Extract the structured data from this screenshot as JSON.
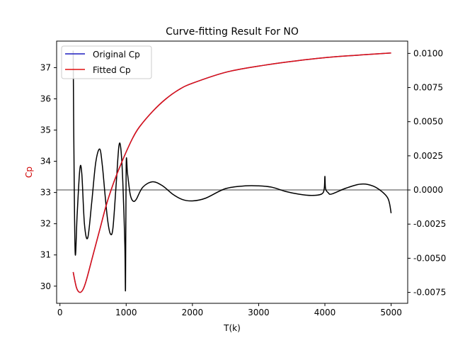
{
  "chart_data": {
    "type": "line",
    "title": "Curve-fitting Result For NO",
    "xlabel": "T(k)",
    "ylabel": "Cp",
    "xlim": [
      -50,
      5250
    ],
    "ylim": [
      29.45,
      37.85
    ],
    "y2lim": [
      -0.0083,
      0.0109
    ],
    "grid": false,
    "legend_position": "upper-left",
    "x_ticks": [
      "0",
      "1000",
      "2000",
      "3000",
      "4000",
      "5000"
    ],
    "y_ticks": [
      "30",
      "31",
      "32",
      "33",
      "34",
      "35",
      "36",
      "37"
    ],
    "y2_ticks": [
      "-0.0075",
      "-0.0050",
      "-0.0025",
      "0.0000",
      "0.0025",
      "0.0050",
      "0.0075",
      "0.0100"
    ],
    "colors": {
      "original": "#1f1fbf",
      "fitted": "#e01010",
      "residual": "#000000",
      "zero_line": "#808080",
      "ylabel": "#d00000"
    },
    "series": [
      {
        "name": "Original Cp",
        "axis": "left",
        "x": [
          200,
          250,
          300,
          350,
          400,
          500,
          600,
          700,
          800,
          900,
          1000,
          1100,
          1200,
          1400,
          1600,
          1800,
          2000,
          2500,
          3000,
          3500,
          4000,
          4500,
          5000
        ],
        "values": [
          30.45,
          29.95,
          29.8,
          29.9,
          30.2,
          31.0,
          31.8,
          32.6,
          33.25,
          33.8,
          34.3,
          34.75,
          35.1,
          35.6,
          36.0,
          36.3,
          36.5,
          36.85,
          37.05,
          37.2,
          37.32,
          37.4,
          37.47
        ]
      },
      {
        "name": "Fitted Cp",
        "axis": "left",
        "x": [
          200,
          250,
          300,
          350,
          400,
          500,
          600,
          700,
          800,
          900,
          1000,
          1100,
          1200,
          1400,
          1600,
          1800,
          2000,
          2500,
          3000,
          3500,
          4000,
          4500,
          5000
        ],
        "values": [
          30.45,
          29.95,
          29.8,
          29.9,
          30.2,
          31.0,
          31.8,
          32.6,
          33.25,
          33.8,
          34.3,
          34.75,
          35.1,
          35.6,
          36.0,
          36.3,
          36.5,
          36.85,
          37.05,
          37.2,
          37.32,
          37.4,
          37.47
        ]
      },
      {
        "axis": "right",
        "x": [
          200,
          210,
          230,
          260,
          300,
          330,
          370,
          420,
          480,
          540,
          600,
          640,
          680,
          720,
          760,
          800,
          850,
          890,
          920,
          950,
          980,
          990,
          1000,
          1020,
          1060,
          1100,
          1150,
          1250,
          1400,
          1550,
          1700,
          1850,
          2000,
          2200,
          2500,
          2800,
          3000,
          3200,
          3400,
          3600,
          3800,
          3950,
          3990,
          4000,
          4010,
          4050,
          4100,
          4300,
          4500,
          4650,
          4800,
          4950,
          5000
        ],
        "values": [
          0.0102,
          0.0035,
          -0.0046,
          -0.0018,
          0.0015,
          0.0012,
          -0.0025,
          -0.0035,
          -0.0009,
          0.002,
          0.003,
          0.0018,
          -0.0003,
          -0.0022,
          -0.0032,
          -0.0028,
          0.0005,
          0.0032,
          0.003,
          0.0005,
          -0.004,
          -0.0072,
          0.0018,
          0.0012,
          -0.0003,
          -0.0008,
          -0.0007,
          0.0002,
          0.0006,
          0.0003,
          -0.0003,
          -0.0007,
          -0.0008,
          -0.0006,
          0.0001,
          0.0003,
          0.0003,
          0.0002,
          -0.0001,
          -0.0003,
          -0.0004,
          -0.0003,
          0.0001,
          0.001,
          0.0001,
          -0.0002,
          -0.0003,
          0.0001,
          0.0004,
          0.0004,
          0.0001,
          -0.0006,
          -0.0017
        ]
      }
    ],
    "reference_line": {
      "axis": "right",
      "value": 0.0
    }
  }
}
